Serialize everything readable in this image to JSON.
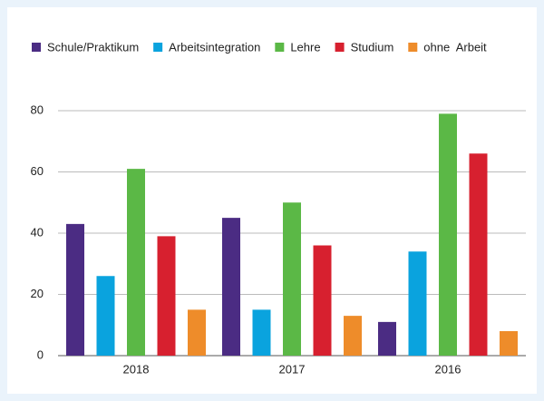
{
  "chart_data": {
    "type": "bar",
    "categories": [
      "2018",
      "2017",
      "2016"
    ],
    "series": [
      {
        "name": "Schule/Praktikum",
        "color": "#4b2c83",
        "values": [
          43,
          45,
          11
        ]
      },
      {
        "name": "Arbeitsintegration",
        "color": "#0aa3de",
        "values": [
          26,
          15,
          34
        ]
      },
      {
        "name": "Lehre",
        "color": "#5bb846",
        "values": [
          61,
          50,
          79
        ]
      },
      {
        "name": "Studium",
        "color": "#d7202f",
        "values": [
          39,
          36,
          66
        ]
      },
      {
        "name": "ohne  Arbeit",
        "color": "#ee8c2a",
        "values": [
          15,
          13,
          8
        ]
      }
    ],
    "ylim": [
      0,
      80
    ],
    "yticks": [
      0,
      20,
      40,
      60,
      80
    ],
    "grid": true,
    "legend": "top"
  }
}
